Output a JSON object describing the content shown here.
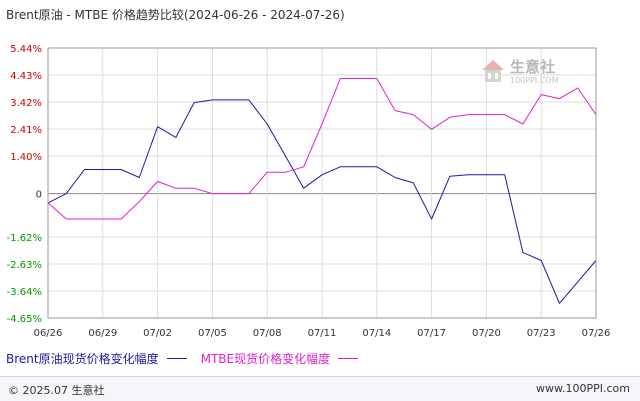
{
  "title": "Brent原油 - MTBE 价格趋势比较(2024-06-26 - 2024-07-26)",
  "watermark": {
    "name": "生意社",
    "url": "100PPI.COM"
  },
  "footer": {
    "copyright": "© 2025.07 生意社",
    "url": "www.100PPI.com"
  },
  "colors": {
    "brent": "#1a1aa6",
    "mtbe": "#e020d0",
    "pos_tick": "#cc0000",
    "neg_tick": "#009900",
    "grid": "#dddddd"
  },
  "chart_data": {
    "type": "line",
    "title": "Brent原油 - MTBE 价格趋势比较(2024-06-26 - 2024-07-26)",
    "x": [
      "06/26",
      "06/27",
      "06/28",
      "06/29",
      "06/30",
      "07/01",
      "07/02",
      "07/03",
      "07/04",
      "07/05",
      "07/06",
      "07/07",
      "07/08",
      "07/09",
      "07/10",
      "07/11",
      "07/12",
      "07/13",
      "07/14",
      "07/15",
      "07/16",
      "07/17",
      "07/18",
      "07/19",
      "07/20",
      "07/21",
      "07/22",
      "07/23",
      "07/24",
      "07/25",
      "07/26"
    ],
    "xticks": [
      "06/26",
      "06/29",
      "07/02",
      "07/05",
      "07/08",
      "07/11",
      "07/14",
      "07/17",
      "07/20",
      "07/23",
      "07/26"
    ],
    "yticks": [
      5.44,
      4.43,
      3.42,
      2.41,
      1.4,
      0,
      -1.62,
      -2.63,
      -3.64,
      -4.65
    ],
    "ylim": [
      -4.65,
      5.44
    ],
    "grid": true,
    "series": [
      {
        "name": "Brent原油现货价格变化幅度",
        "color": "#1a1aa6",
        "values": [
          -0.35,
          0.0,
          0.9,
          0.9,
          0.9,
          0.6,
          2.5,
          2.1,
          3.4,
          3.5,
          3.5,
          3.5,
          2.6,
          1.4,
          0.2,
          0.7,
          1.0,
          1.0,
          1.0,
          0.6,
          0.4,
          -0.95,
          0.65,
          0.7,
          0.7,
          0.7,
          -2.2,
          -2.5,
          -4.1,
          -3.3,
          -2.5
        ]
      },
      {
        "name": "MTBE现货价格变化幅度",
        "color": "#e020d0",
        "values": [
          -0.35,
          -0.95,
          -0.95,
          -0.95,
          -0.95,
          -0.3,
          0.45,
          0.2,
          0.2,
          0.0,
          0.0,
          0.0,
          0.8,
          0.8,
          1.0,
          2.6,
          4.3,
          4.3,
          4.3,
          3.1,
          2.95,
          2.4,
          2.85,
          2.95,
          2.95,
          2.95,
          2.6,
          3.7,
          3.55,
          3.95,
          2.95
        ]
      }
    ]
  }
}
